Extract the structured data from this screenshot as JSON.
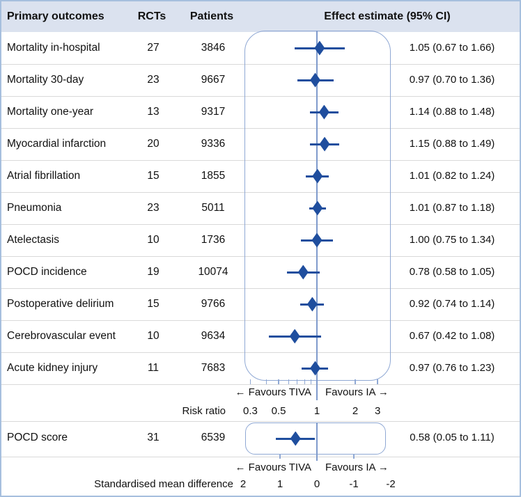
{
  "header": {
    "outcomes": "Primary outcomes",
    "rcts": "RCTs",
    "patients": "Patients",
    "effect": "Effect estimate (95% CI)"
  },
  "colors": {
    "accent": "#1F4E9E",
    "rect_border": "#8FA8D4",
    "refline": "#7F9BCC",
    "header_bg": "#DBE2EF",
    "separator": "#D9D9D9",
    "outer_border": "#A6BFDE"
  },
  "chart_data": {
    "type": "forest",
    "title": "Primary outcomes forest plot",
    "risk_ratio_section": {
      "axis_label": "Risk ratio",
      "scale": "log",
      "reference_value": 1,
      "favours_left": "← Favours TIVA",
      "favours_right": "Favours IA →",
      "tick_labels": [
        {
          "v": 0.3,
          "t": "0.3"
        },
        {
          "v": 0.5,
          "t": "0.5"
        },
        {
          "v": 1,
          "t": "1"
        },
        {
          "v": 2,
          "t": "2"
        },
        {
          "v": 3,
          "t": "3"
        }
      ],
      "minor_ticks": [
        0.3,
        0.4,
        0.5,
        0.6,
        0.7,
        0.8,
        0.9,
        2,
        3
      ],
      "rows": [
        {
          "outcome": "Mortality in-hospital",
          "rcts": "27",
          "patients": "3846",
          "estimate": 1.05,
          "ci_low": 0.67,
          "ci_high": 1.66,
          "ci_text": "1.05 (0.67 to 1.66)"
        },
        {
          "outcome": "Mortality 30-day",
          "rcts": "23",
          "patients": "9667",
          "estimate": 0.97,
          "ci_low": 0.7,
          "ci_high": 1.36,
          "ci_text": "0.97 (0.70 to 1.36)"
        },
        {
          "outcome": "Mortality one-year",
          "rcts": "13",
          "patients": "9317",
          "estimate": 1.14,
          "ci_low": 0.88,
          "ci_high": 1.48,
          "ci_text": "1.14 (0.88 to 1.48)"
        },
        {
          "outcome": "Myocardial infarction",
          "rcts": "20",
          "patients": "9336",
          "estimate": 1.15,
          "ci_low": 0.88,
          "ci_high": 1.49,
          "ci_text": "1.15 (0.88 to 1.49)"
        },
        {
          "outcome": "Atrial fibrillation",
          "rcts": "15",
          "patients": "1855",
          "estimate": 1.01,
          "ci_low": 0.82,
          "ci_high": 1.24,
          "ci_text": "1.01 (0.82 to 1.24)"
        },
        {
          "outcome": "Pneumonia",
          "rcts": "23",
          "patients": "5011",
          "estimate": 1.01,
          "ci_low": 0.87,
          "ci_high": 1.18,
          "ci_text": "1.01 (0.87 to 1.18)"
        },
        {
          "outcome": "Atelectasis",
          "rcts": "10",
          "patients": "1736",
          "estimate": 1.0,
          "ci_low": 0.75,
          "ci_high": 1.34,
          "ci_text": "1.00 (0.75 to 1.34)"
        },
        {
          "outcome": "POCD incidence",
          "rcts": "19",
          "patients": "10074",
          "estimate": 0.78,
          "ci_low": 0.58,
          "ci_high": 1.05,
          "ci_text": "0.78 (0.58 to 1.05)"
        },
        {
          "outcome": "Postoperative delirium",
          "rcts": "15",
          "patients": "9766",
          "estimate": 0.92,
          "ci_low": 0.74,
          "ci_high": 1.14,
          "ci_text": "0.92 (0.74 to 1.14)"
        },
        {
          "outcome": "Cerebrovascular event",
          "rcts": "10",
          "patients": "9634",
          "estimate": 0.67,
          "ci_low": 0.42,
          "ci_high": 1.08,
          "ci_text": "0.67 (0.42 to 1.08)"
        },
        {
          "outcome": "Acute kidney injury",
          "rcts": "11",
          "patients": "7683",
          "estimate": 0.97,
          "ci_low": 0.76,
          "ci_high": 1.23,
          "ci_text": "0.97 (0.76 to 1.23)"
        }
      ]
    },
    "smd_section": {
      "axis_label": "Standardised mean difference",
      "scale": "linear-reversed",
      "reference_value": 0,
      "favours_left": "← Favours TIVA",
      "favours_right": "Favours IA →",
      "tick_labels": [
        {
          "v": 2,
          "t": "2"
        },
        {
          "v": 1,
          "t": "1"
        },
        {
          "v": 0,
          "t": "0"
        },
        {
          "v": -1,
          "t": "-1"
        },
        {
          "v": -2,
          "t": "-2"
        }
      ],
      "minor_ticks": [
        1,
        -1
      ],
      "rows": [
        {
          "outcome": "POCD score",
          "rcts": "31",
          "patients": "6539",
          "estimate": 0.58,
          "ci_low": 0.05,
          "ci_high": 1.11,
          "ci_text": "0.58 (0.05 to 1.11)"
        }
      ]
    }
  }
}
